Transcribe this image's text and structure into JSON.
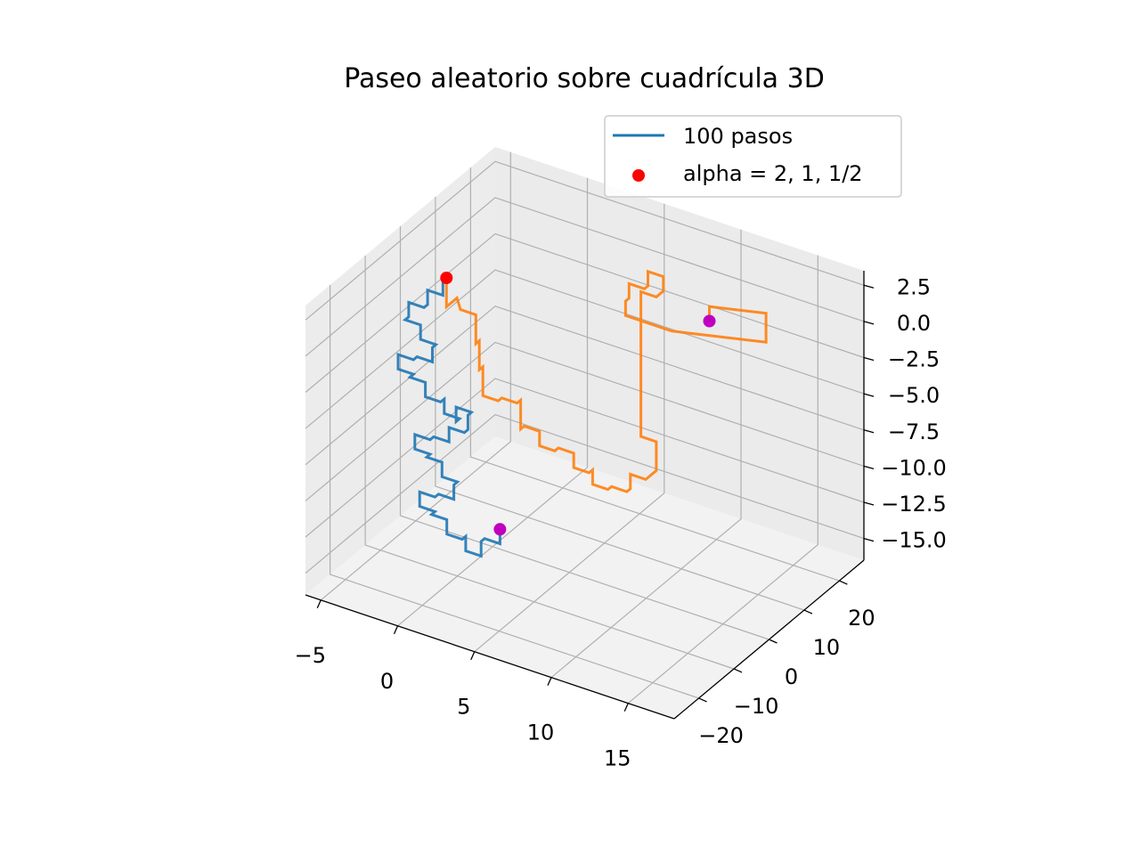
{
  "chart_data": {
    "type": "line",
    "projection": "3d",
    "title": "Paseo aleatorio sobre cuadrícula 3D",
    "xlabel": "",
    "ylabel": "",
    "zlabel": "",
    "grid": true,
    "legend_placement": "top-right",
    "x_ticks": [
      "−5",
      "0",
      "5",
      "10",
      "15"
    ],
    "y_ticks": [
      "−20",
      "−10",
      "0",
      "10",
      "20"
    ],
    "z_ticks": [
      "2.5",
      "0.0",
      "−2.5",
      "−5.0",
      "−7.5",
      "−10.0",
      "−12.5",
      "−15.0"
    ],
    "xlim": [
      -6,
      18
    ],
    "ylim": [
      -27,
      27
    ],
    "zlim": [
      -16.5,
      3.5
    ],
    "legend": [
      {
        "label": "100 pasos",
        "marker": "line",
        "color": "#1f77b4"
      },
      {
        "label": "alpha = 2, 1, 1/2",
        "marker": "dot",
        "color": "#ff0000"
      }
    ],
    "series": [
      {
        "color": "#1f77b4",
        "points": [
          [
            -3,
            0,
            1
          ],
          [
            -3,
            -1,
            1
          ],
          [
            -3,
            -1,
            0
          ],
          [
            -4,
            -1,
            0
          ],
          [
            -4,
            -1,
            -1
          ],
          [
            -4,
            -2,
            -1
          ],
          [
            -5,
            -2,
            -1
          ],
          [
            -5,
            -2,
            -2
          ],
          [
            -5,
            -3,
            -2
          ],
          [
            -4,
            -3,
            -2
          ],
          [
            -4,
            -3,
            -3
          ],
          [
            -3,
            -3,
            -3
          ],
          [
            -3,
            -4,
            -3
          ],
          [
            -3,
            -4,
            -4
          ],
          [
            -4,
            -4,
            -4
          ],
          [
            -4,
            -5,
            -4
          ],
          [
            -5,
            -5,
            -4
          ],
          [
            -5,
            -5,
            -5
          ],
          [
            -4,
            -5,
            -5
          ],
          [
            -4,
            -6,
            -5
          ],
          [
            -3,
            -6,
            -5
          ],
          [
            -3,
            -6,
            -6
          ],
          [
            -2,
            -6,
            -6
          ],
          [
            -2,
            -5,
            -6
          ],
          [
            -2,
            -5,
            -7
          ],
          [
            -1,
            -5,
            -7
          ],
          [
            -1,
            -6,
            -7
          ],
          [
            -1,
            -6,
            -6
          ],
          [
            0,
            -6,
            -6
          ],
          [
            0,
            -7,
            -6
          ],
          [
            0,
            -7,
            -7
          ],
          [
            0,
            -8,
            -7
          ],
          [
            -1,
            -8,
            -7
          ],
          [
            -1,
            -8,
            -8
          ],
          [
            -2,
            -8,
            -8
          ],
          [
            -2,
            -9,
            -8
          ],
          [
            -3,
            -9,
            -8
          ],
          [
            -3,
            -9,
            -9
          ],
          [
            -2,
            -9,
            -9
          ],
          [
            -2,
            -10,
            -9
          ],
          [
            -1,
            -10,
            -9
          ],
          [
            -1,
            -10,
            -10
          ],
          [
            0,
            -10,
            -10
          ],
          [
            0,
            -11,
            -10
          ],
          [
            0,
            -11,
            -11
          ],
          [
            -1,
            -11,
            -11
          ],
          [
            -1,
            -12,
            -11
          ],
          [
            -2,
            -12,
            -11
          ],
          [
            -2,
            -12,
            -12
          ],
          [
            -1,
            -12,
            -12
          ],
          [
            -1,
            -13,
            -12
          ],
          [
            0,
            -13,
            -12
          ],
          [
            0,
            -13,
            -13
          ],
          [
            1,
            -13,
            -13
          ],
          [
            1,
            -12,
            -13
          ],
          [
            1,
            -12,
            -14
          ],
          [
            2,
            -12,
            -14
          ],
          [
            2,
            -12,
            -13
          ],
          [
            2,
            -11,
            -13
          ],
          [
            3,
            -11,
            -13
          ],
          [
            3,
            -11,
            -12
          ]
        ]
      },
      {
        "color": "#ff7f0e",
        "points": [
          [
            -3,
            0,
            1
          ],
          [
            -3,
            0,
            -1
          ],
          [
            -3,
            1,
            -1
          ],
          [
            -3,
            3,
            -1
          ],
          [
            -3,
            4,
            -2
          ],
          [
            -2,
            4,
            -2
          ],
          [
            -2,
            4,
            -4
          ],
          [
            -2,
            5,
            -4
          ],
          [
            -2,
            5,
            -6
          ],
          [
            -2,
            6,
            -6
          ],
          [
            -2,
            6,
            -8
          ],
          [
            -1,
            6,
            -8
          ],
          [
            -1,
            7,
            -8
          ],
          [
            0,
            7,
            -8
          ],
          [
            0,
            8,
            -8
          ],
          [
            0,
            8,
            -10
          ],
          [
            0,
            9,
            -10
          ],
          [
            1,
            9,
            -10
          ],
          [
            1,
            9,
            -11
          ],
          [
            2,
            9,
            -11
          ],
          [
            2,
            10,
            -11
          ],
          [
            3,
            10,
            -11
          ],
          [
            3,
            10,
            -12
          ],
          [
            4,
            10,
            -12
          ],
          [
            4,
            11,
            -12
          ],
          [
            4,
            11,
            -13
          ],
          [
            5,
            11,
            -13
          ],
          [
            5,
            12,
            -13
          ],
          [
            6,
            12,
            -13
          ],
          [
            6,
            13,
            -13
          ],
          [
            6,
            13,
            -12
          ],
          [
            7,
            13,
            -12
          ],
          [
            7,
            14,
            -12
          ],
          [
            7,
            15,
            -12
          ],
          [
            7,
            16,
            -12
          ],
          [
            7,
            16,
            -10
          ],
          [
            6,
            16,
            -10
          ],
          [
            6,
            16,
            -8
          ],
          [
            6,
            16,
            -6
          ],
          [
            6,
            16,
            -4
          ],
          [
            6,
            16,
            -2
          ],
          [
            6,
            16,
            0
          ],
          [
            7,
            16,
            0
          ],
          [
            7,
            17,
            0
          ],
          [
            7,
            18,
            0
          ],
          [
            7,
            18,
            1
          ],
          [
            6,
            18,
            1
          ],
          [
            6,
            18,
            0
          ],
          [
            6,
            17,
            0
          ],
          [
            5,
            17,
            0
          ],
          [
            5,
            17,
            -1
          ],
          [
            5,
            16,
            -1
          ],
          [
            5,
            16,
            -2
          ],
          [
            6,
            16,
            -2
          ],
          [
            7,
            16,
            -2
          ],
          [
            8,
            16,
            -2
          ],
          [
            9,
            17,
            -2
          ],
          [
            10,
            18,
            -2
          ],
          [
            11,
            19,
            -2
          ],
          [
            12,
            20,
            -2
          ],
          [
            13,
            21,
            -2
          ],
          [
            13,
            21,
            0
          ],
          [
            12,
            20,
            0
          ],
          [
            11,
            19,
            0
          ],
          [
            10,
            18,
            0
          ],
          [
            10,
            18,
            -1
          ]
        ]
      }
    ],
    "markers": [
      {
        "point": [
          -3,
          0,
          1
        ],
        "color": "#ff0000"
      },
      {
        "point": [
          3,
          -11,
          -12
        ],
        "color": "#bf00bf"
      },
      {
        "point": [
          10,
          18,
          -1
        ],
        "color": "#bf00bf"
      }
    ]
  }
}
